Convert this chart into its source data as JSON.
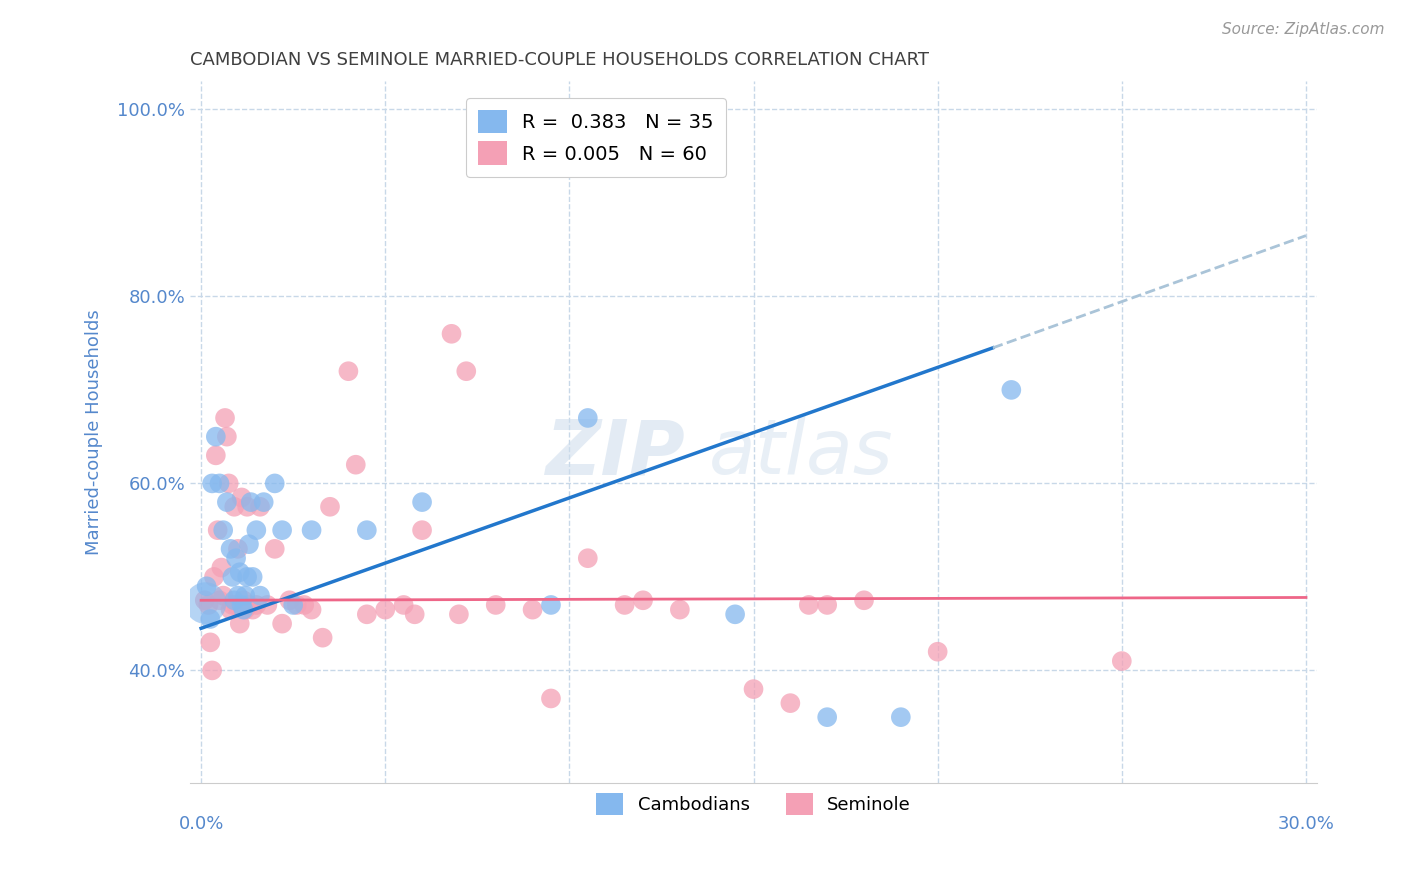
{
  "title": "CAMBODIAN VS SEMINOLE MARRIED-COUPLE HOUSEHOLDS CORRELATION CHART",
  "source": "Source: ZipAtlas.com",
  "ylabel": "Married-couple Households",
  "yticks": [
    40.0,
    60.0,
    80.0,
    100.0
  ],
  "ytick_labels": [
    "40.0%",
    "60.0%",
    "80.0%",
    "100.0%"
  ],
  "xmin": 0.0,
  "xmax": 30.0,
  "ymin": 28.0,
  "ymax": 103.0,
  "watermark": "ZIPatlas",
  "legend_cambodian_r": "0.383",
  "legend_cambodian_n": "35",
  "legend_seminole_r": "0.005",
  "legend_seminole_n": "60",
  "cambodian_color": "#85b8ee",
  "seminole_color": "#f4a0b5",
  "trendline_cambodian_color": "#2277cc",
  "trendline_seminole_color": "#ee6688",
  "trendline_ext_color": "#aac4d8",
  "background_color": "#ffffff",
  "grid_color": "#c8d8e8",
  "title_color": "#404040",
  "axis_label_color": "#5588cc",
  "cambodian_x": [
    0.15,
    0.3,
    0.4,
    0.5,
    0.6,
    0.7,
    0.8,
    0.85,
    0.9,
    0.95,
    1.0,
    1.05,
    1.1,
    1.15,
    1.2,
    1.25,
    1.3,
    1.35,
    1.4,
    1.5,
    1.6,
    1.7,
    2.0,
    2.2,
    2.5,
    3.0,
    4.5,
    6.0,
    9.5,
    10.5,
    14.5,
    17.0,
    19.0,
    22.0,
    0.25
  ],
  "cambodian_y": [
    49.0,
    60.0,
    65.0,
    60.0,
    55.0,
    58.0,
    53.0,
    50.0,
    47.5,
    52.0,
    48.0,
    50.5,
    47.0,
    46.5,
    48.0,
    50.0,
    53.5,
    58.0,
    50.0,
    55.0,
    48.0,
    58.0,
    60.0,
    55.0,
    47.0,
    55.0,
    55.0,
    58.0,
    47.0,
    67.0,
    46.0,
    35.0,
    35.0,
    70.0,
    45.5
  ],
  "cambodian_large": [
    0.15
  ],
  "cambodian_large_y": [
    47.5
  ],
  "seminole_x": [
    0.1,
    0.2,
    0.25,
    0.3,
    0.35,
    0.4,
    0.45,
    0.5,
    0.55,
    0.6,
    0.65,
    0.7,
    0.75,
    0.8,
    0.85,
    0.9,
    0.95,
    1.0,
    1.05,
    1.1,
    1.15,
    1.2,
    1.25,
    1.3,
    1.4,
    1.5,
    1.6,
    1.8,
    2.0,
    2.2,
    2.4,
    2.6,
    3.0,
    3.5,
    4.0,
    4.5,
    5.0,
    5.5,
    6.0,
    7.0,
    8.0,
    9.0,
    9.5,
    10.5,
    12.0,
    13.0,
    15.0,
    16.0,
    17.0,
    18.0,
    20.0,
    25.0,
    2.8,
    4.2,
    6.8,
    7.2,
    3.3,
    5.8,
    11.5,
    16.5
  ],
  "seminole_y": [
    47.5,
    47.0,
    43.0,
    40.0,
    50.0,
    63.0,
    55.0,
    47.5,
    51.0,
    48.0,
    67.0,
    65.0,
    60.0,
    46.5,
    47.0,
    57.5,
    47.0,
    53.0,
    45.0,
    58.5,
    47.5,
    46.5,
    57.5,
    47.0,
    46.5,
    47.0,
    57.5,
    47.0,
    53.0,
    45.0,
    47.5,
    47.0,
    46.5,
    57.5,
    72.0,
    46.0,
    46.5,
    47.0,
    55.0,
    46.0,
    47.0,
    46.5,
    37.0,
    52.0,
    47.5,
    46.5,
    38.0,
    36.5,
    47.0,
    47.5,
    42.0,
    41.0,
    47.0,
    62.0,
    76.0,
    72.0,
    43.5,
    46.0,
    47.0,
    47.0
  ],
  "cam_trendline_x0": 0.0,
  "cam_trendline_y0": 44.5,
  "cam_trendline_x1": 21.5,
  "cam_trendline_y1": 74.5,
  "cam_ext_x0": 21.5,
  "cam_ext_y0": 74.5,
  "cam_ext_x1": 30.0,
  "cam_ext_y1": 86.5,
  "sem_trendline_x0": 0.0,
  "sem_trendline_y0": 47.5,
  "sem_trendline_x1": 30.0,
  "sem_trendline_y1": 47.8
}
